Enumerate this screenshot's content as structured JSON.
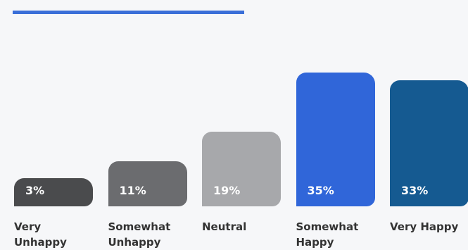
{
  "chart_data": {
    "type": "bar",
    "categories": [
      "Very Unhappy",
      "Somewhat Unhappy",
      "Neutral",
      "Somewhat Happy",
      "Very Happy"
    ],
    "values": [
      3,
      11,
      19,
      35,
      33
    ],
    "value_labels": [
      "3%",
      "11%",
      "19%",
      "35%",
      "33%"
    ],
    "colors": [
      "#4a4b4d",
      "#6b6c6f",
      "#a7a8ab",
      "#3066d9",
      "#155a91"
    ]
  }
}
